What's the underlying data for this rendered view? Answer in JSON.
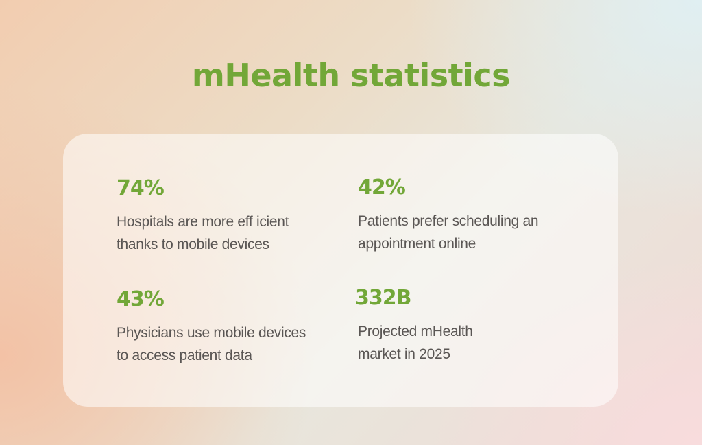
{
  "title": "mHealth statistics",
  "stats": [
    {
      "value": "74%",
      "line1": "Hospitals are more eff icient",
      "line2": "thanks to mobile devices"
    },
    {
      "value": "42%",
      "line1": "Patients prefer scheduling an",
      "line2": "appointment online"
    },
    {
      "value": "43%",
      "line1": "Physicians use mobile devices",
      "line2": "to access patient data"
    },
    {
      "value": "332B",
      "line1": "Projected mHealth",
      "line2": "market in 2025"
    }
  ],
  "colors": {
    "accent": "#72a738",
    "text": "#5a5654",
    "card": "#fbf1ea"
  }
}
